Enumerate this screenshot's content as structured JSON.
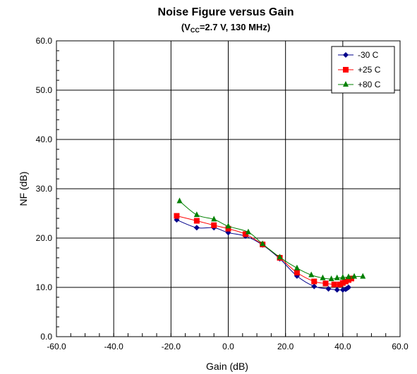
{
  "chart_data": {
    "type": "scatter",
    "title": "Noise Figure versus Gain",
    "subtitle_parts": [
      "(V",
      "CC",
      "=2.7 V, 130 MHz)"
    ],
    "xlabel": "Gain (dB)",
    "ylabel": "NF (dB)",
    "xlim": [
      -60,
      60
    ],
    "ylim": [
      0,
      60
    ],
    "xticks": [
      -60,
      -40,
      -20,
      0,
      20,
      40,
      60
    ],
    "yticks": [
      0,
      10,
      20,
      30,
      40,
      50,
      60
    ],
    "xtick_labels": [
      "-60.0",
      "-40.0",
      "-20.0",
      "0.0",
      "20.0",
      "40.0",
      "60.0"
    ],
    "ytick_labels": [
      "0.0",
      "10.0",
      "20.0",
      "30.0",
      "40.0",
      "50.0",
      "60.0"
    ],
    "grid": true,
    "legend_position": "top-right",
    "series": [
      {
        "name": "-30 C",
        "color": "#00008B",
        "marker": "diamond",
        "x": [
          -18,
          -11,
          -5,
          0,
          6,
          12,
          18,
          24,
          30,
          35,
          38,
          40,
          41,
          41.5,
          42
        ],
        "y": [
          23.7,
          22.1,
          22.1,
          21.1,
          20.4,
          18.6,
          15.8,
          12.3,
          10.2,
          9.7,
          9.5,
          9.5,
          9.6,
          9.8,
          10.0
        ]
      },
      {
        "name": "+25 C",
        "color": "#FF0000",
        "marker": "square",
        "x": [
          -18,
          -11,
          -5,
          0,
          6,
          12,
          18,
          24,
          30,
          34,
          37,
          39,
          40,
          41,
          42,
          43
        ],
        "y": [
          24.5,
          23.5,
          22.6,
          21.9,
          20.8,
          18.7,
          16.0,
          13.0,
          11.2,
          10.8,
          10.6,
          10.6,
          10.9,
          11.2,
          11.5,
          11.8
        ]
      },
      {
        "name": "+80 C",
        "color": "#008000",
        "marker": "triangle",
        "x": [
          -17,
          -11,
          -5,
          0,
          7,
          12,
          18,
          24,
          29,
          33,
          36,
          38,
          40,
          42,
          44,
          47
        ],
        "y": [
          27.5,
          24.7,
          23.8,
          22.4,
          21.2,
          18.8,
          16.1,
          13.9,
          12.5,
          11.9,
          11.7,
          11.9,
          12.0,
          12.1,
          12.2,
          12.2
        ]
      }
    ]
  }
}
